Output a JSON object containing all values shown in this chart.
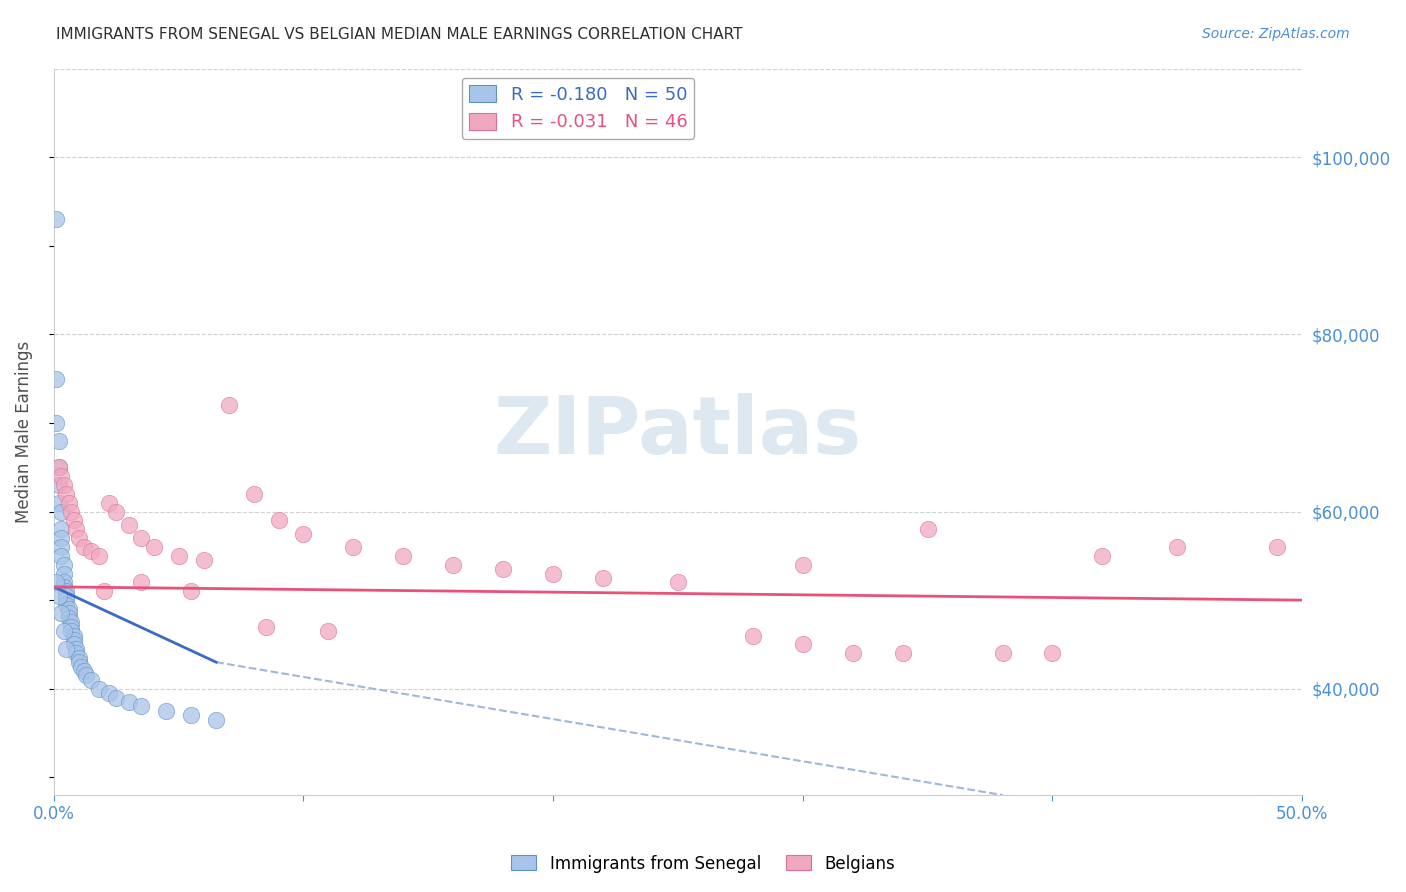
{
  "title": "IMMIGRANTS FROM SENEGAL VS BELGIAN MEDIAN MALE EARNINGS CORRELATION CHART",
  "source": "Source: ZipAtlas.com",
  "ylabel": "Median Male Earnings",
  "xlim": [
    0.0,
    0.5
  ],
  "ylim": [
    28000,
    110000
  ],
  "blue_scatter_x": [
    0.001,
    0.001,
    0.001,
    0.002,
    0.002,
    0.002,
    0.002,
    0.003,
    0.003,
    0.003,
    0.003,
    0.003,
    0.004,
    0.004,
    0.004,
    0.004,
    0.005,
    0.005,
    0.005,
    0.005,
    0.006,
    0.006,
    0.006,
    0.007,
    0.007,
    0.007,
    0.008,
    0.008,
    0.008,
    0.009,
    0.009,
    0.01,
    0.01,
    0.011,
    0.012,
    0.013,
    0.015,
    0.018,
    0.022,
    0.025,
    0.03,
    0.035,
    0.045,
    0.055,
    0.065,
    0.001,
    0.002,
    0.003,
    0.004,
    0.005
  ],
  "blue_scatter_y": [
    93000,
    75000,
    70000,
    68000,
    65000,
    63000,
    61000,
    60000,
    58000,
    57000,
    56000,
    55000,
    54000,
    53000,
    52000,
    51500,
    51000,
    50500,
    50000,
    49500,
    49000,
    48500,
    48000,
    47500,
    47000,
    46500,
    46000,
    45500,
    45000,
    44500,
    44000,
    43500,
    43000,
    42500,
    42000,
    41500,
    41000,
    40000,
    39500,
    39000,
    38500,
    38000,
    37500,
    37000,
    36500,
    52000,
    50500,
    48500,
    46500,
    44500
  ],
  "pink_scatter_x": [
    0.002,
    0.003,
    0.004,
    0.005,
    0.006,
    0.007,
    0.008,
    0.009,
    0.01,
    0.012,
    0.015,
    0.018,
    0.022,
    0.025,
    0.03,
    0.035,
    0.04,
    0.05,
    0.06,
    0.07,
    0.08,
    0.09,
    0.1,
    0.12,
    0.14,
    0.16,
    0.18,
    0.2,
    0.22,
    0.25,
    0.28,
    0.3,
    0.32,
    0.35,
    0.38,
    0.4,
    0.42,
    0.45,
    0.02,
    0.035,
    0.055,
    0.085,
    0.11,
    0.3,
    0.34,
    0.49
  ],
  "pink_scatter_y": [
    65000,
    64000,
    63000,
    62000,
    61000,
    60000,
    59000,
    58000,
    57000,
    56000,
    55500,
    55000,
    61000,
    60000,
    58500,
    57000,
    56000,
    55000,
    54500,
    72000,
    62000,
    59000,
    57500,
    56000,
    55000,
    54000,
    53500,
    53000,
    52500,
    52000,
    46000,
    54000,
    44000,
    58000,
    44000,
    44000,
    55000,
    56000,
    51000,
    52000,
    51000,
    47000,
    46500,
    45000,
    44000,
    56000
  ],
  "blue_line_x0": 0.0,
  "blue_line_x1": 0.065,
  "blue_line_y0": 51500,
  "blue_line_y1": 43000,
  "dash_line_x0": 0.065,
  "dash_line_x1": 0.38,
  "dash_line_y0": 43000,
  "dash_line_y1": 28000,
  "pink_line_x0": 0.0,
  "pink_line_x1": 0.5,
  "pink_line_y0": 51500,
  "pink_line_y1": 50000,
  "blue_line_color": "#3a6bc4",
  "pink_line_color": "#e8527a",
  "dashed_line_color": "#a0b8d8",
  "watermark_color": "#dde8f0",
  "title_color": "#303030",
  "axis_label_color": "#505050",
  "right_axis_color": "#4a90d9",
  "grid_color": "#d0d0d8",
  "background_color": "#ffffff",
  "blue_dot_color": "#a8c4e8",
  "blue_dot_edge": "#6090c8",
  "pink_dot_color": "#f0a8c0",
  "pink_dot_edge": "#e07090"
}
